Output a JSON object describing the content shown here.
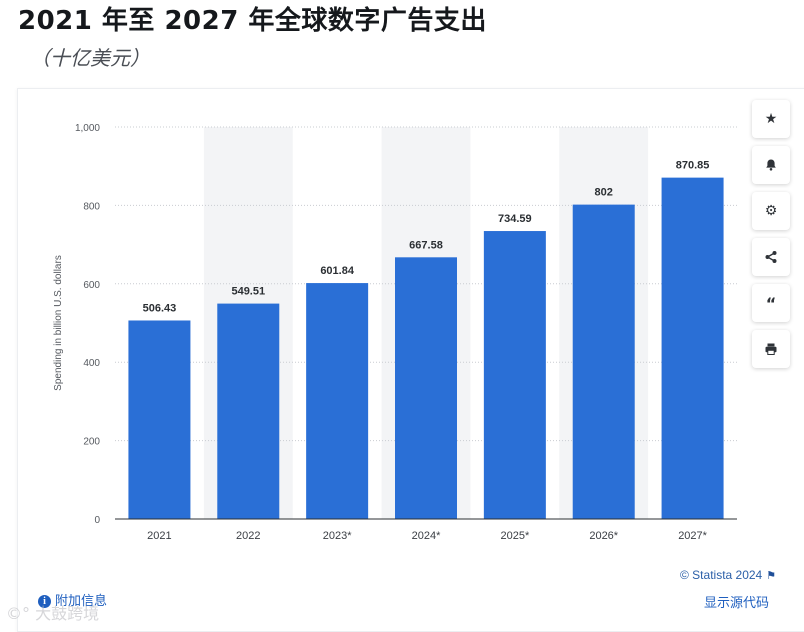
{
  "page": {
    "title": "2021 年至 2027 年全球数字广告支出",
    "subtitle": "（十亿美元）"
  },
  "chart_data": {
    "type": "bar",
    "categories": [
      "2021",
      "2022",
      "2023*",
      "2024*",
      "2025*",
      "2026*",
      "2027*"
    ],
    "values": [
      506.43,
      549.51,
      601.84,
      667.58,
      734.59,
      802,
      870.85
    ],
    "value_labels": [
      "506.43",
      "549.51",
      "601.84",
      "667.58",
      "734.59",
      "802",
      "870.85"
    ],
    "title": "2021 年至 2027 年全球数字广告支出",
    "xlabel": "",
    "ylabel": "Spending in billion U.S. dollars",
    "ylim": [
      0,
      1000
    ],
    "yticks": [
      0,
      200,
      400,
      600,
      800,
      1000
    ],
    "ytick_labels": [
      "0",
      "200",
      "400",
      "600",
      "800",
      "1,000"
    ],
    "bar_color": "#2a6fd6",
    "shaded_band_color": "#f3f4f6",
    "grid": true,
    "legend": "none"
  },
  "toolbar": {
    "icons": [
      "star-icon",
      "bell-icon",
      "gear-icon",
      "share-icon",
      "quote-icon",
      "print-icon"
    ]
  },
  "footer": {
    "credit": "© Statista 2024",
    "additional_info": "附加信息",
    "show_source": "显示源代码"
  },
  "watermark": "大鼓跨境"
}
